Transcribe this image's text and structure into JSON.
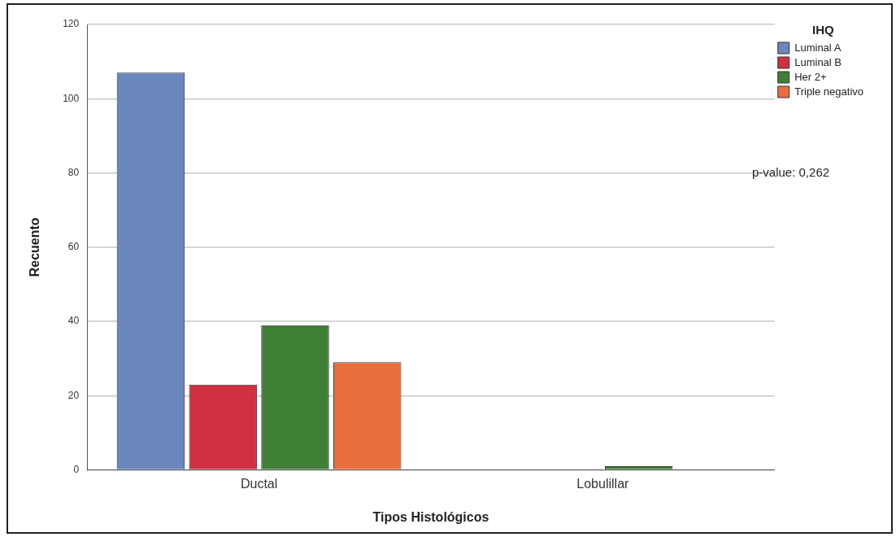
{
  "chart_data": {
    "type": "bar",
    "xlabel": "Tipos Histológicos",
    "ylabel": "Recuento",
    "legend_title": "IHQ",
    "categories": [
      "Ductal",
      "Lobulillar"
    ],
    "series": [
      {
        "name": "Luminal A",
        "color": "#6a88bd",
        "values": [
          107,
          0
        ]
      },
      {
        "name": "Luminal B",
        "color": "#d03040",
        "values": [
          23,
          0
        ]
      },
      {
        "name": "Her 2+",
        "color": "#3f7f36",
        "values": [
          39,
          1
        ]
      },
      {
        "name": "Triple negativo",
        "color": "#ea6e3b",
        "values": [
          29,
          0
        ]
      }
    ],
    "ylim": [
      0,
      120
    ],
    "yticks": [
      0,
      20,
      40,
      60,
      80,
      100,
      120
    ],
    "grid": "y",
    "legend": "top right",
    "annotations": [
      "p-value: 0,262"
    ]
  }
}
